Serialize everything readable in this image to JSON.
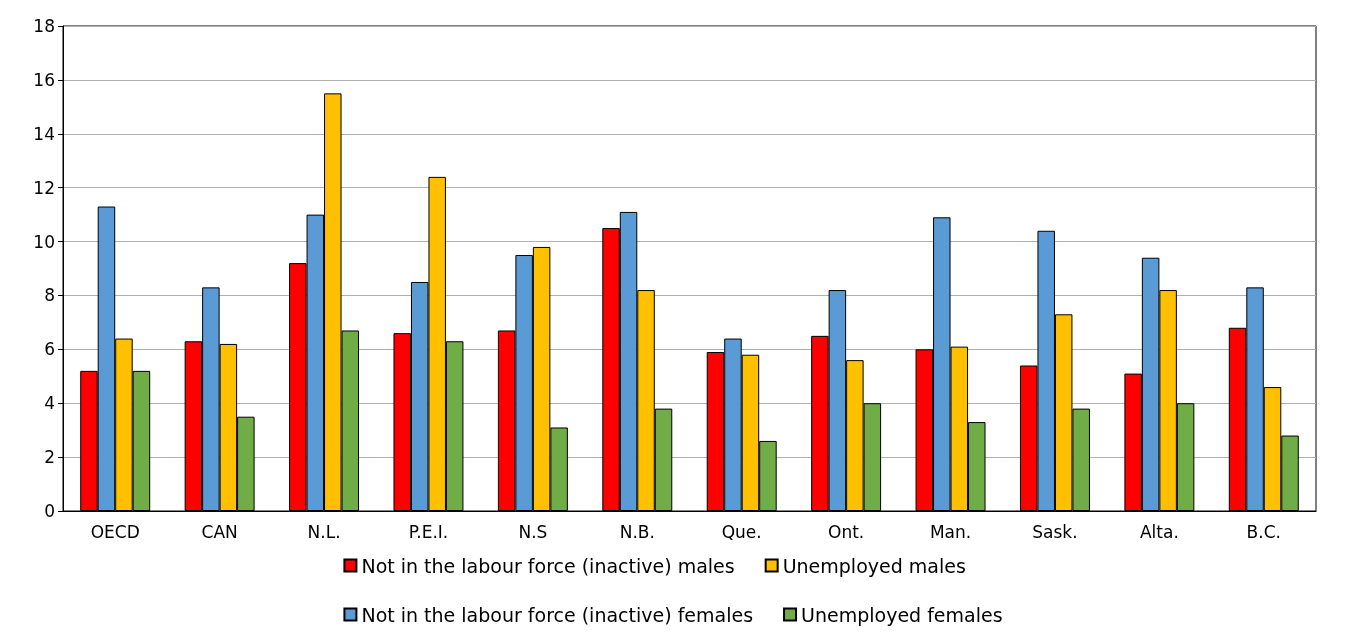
{
  "chart_data": {
    "type": "bar",
    "categories": [
      "OECD",
      "CAN",
      "N.L.",
      "P.E.I.",
      "N.S",
      "N.B.",
      "Que.",
      "Ont.",
      "Man.",
      "Sask.",
      "Alta.",
      "B.C."
    ],
    "series": [
      {
        "name": "Not in the labour force (inactive) males",
        "color": "#ff0000",
        "values": [
          5.2,
          6.3,
          9.2,
          6.6,
          6.7,
          10.5,
          5.9,
          6.5,
          6.0,
          5.4,
          5.1,
          6.8
        ]
      },
      {
        "name": "Not in the labour force (inactive) females",
        "color": "#5b9bd5",
        "values": [
          11.3,
          8.3,
          11.0,
          8.5,
          9.5,
          11.1,
          6.4,
          8.2,
          10.9,
          10.4,
          9.4,
          8.3
        ]
      },
      {
        "name": "Unemployed males",
        "color": "#ffc000",
        "values": [
          6.4,
          6.2,
          15.5,
          12.4,
          9.8,
          8.2,
          5.8,
          5.6,
          6.1,
          7.3,
          8.2,
          4.6
        ]
      },
      {
        "name": "Unemployed females",
        "color": "#70ad47",
        "values": [
          5.2,
          3.5,
          6.7,
          6.3,
          3.1,
          3.8,
          2.6,
          4.0,
          3.3,
          3.8,
          4.0,
          2.8
        ]
      }
    ],
    "ylim": [
      0,
      18
    ],
    "yticks": [
      0,
      2,
      4,
      6,
      8,
      10,
      12,
      14,
      16,
      18
    ],
    "grid": "y",
    "legend": "bottom"
  }
}
